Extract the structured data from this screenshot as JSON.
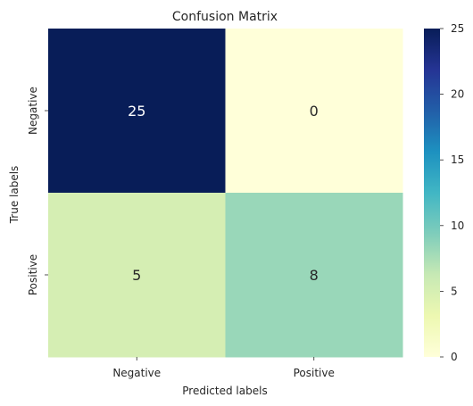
{
  "chart_data": {
    "type": "heatmap",
    "title": "Confusion Matrix",
    "xlabel": "Predicted labels",
    "ylabel": "True labels",
    "x_categories": [
      "Negative",
      "Positive"
    ],
    "y_categories": [
      "Negative",
      "Positive"
    ],
    "values": [
      [
        25,
        0
      ],
      [
        5,
        8
      ]
    ],
    "colormap": "YlGnBu",
    "color_range": [
      0,
      25
    ],
    "colorbar_ticks": [
      0,
      5,
      10,
      15,
      20,
      25
    ],
    "cell_colors": [
      [
        "#081d58",
        "#ffffd9"
      ],
      [
        "#d5eeb3",
        "#99d7b9"
      ]
    ],
    "annotation_colors": [
      [
        "#ffffff",
        "#262626"
      ],
      [
        "#262626",
        "#262626"
      ]
    ]
  }
}
